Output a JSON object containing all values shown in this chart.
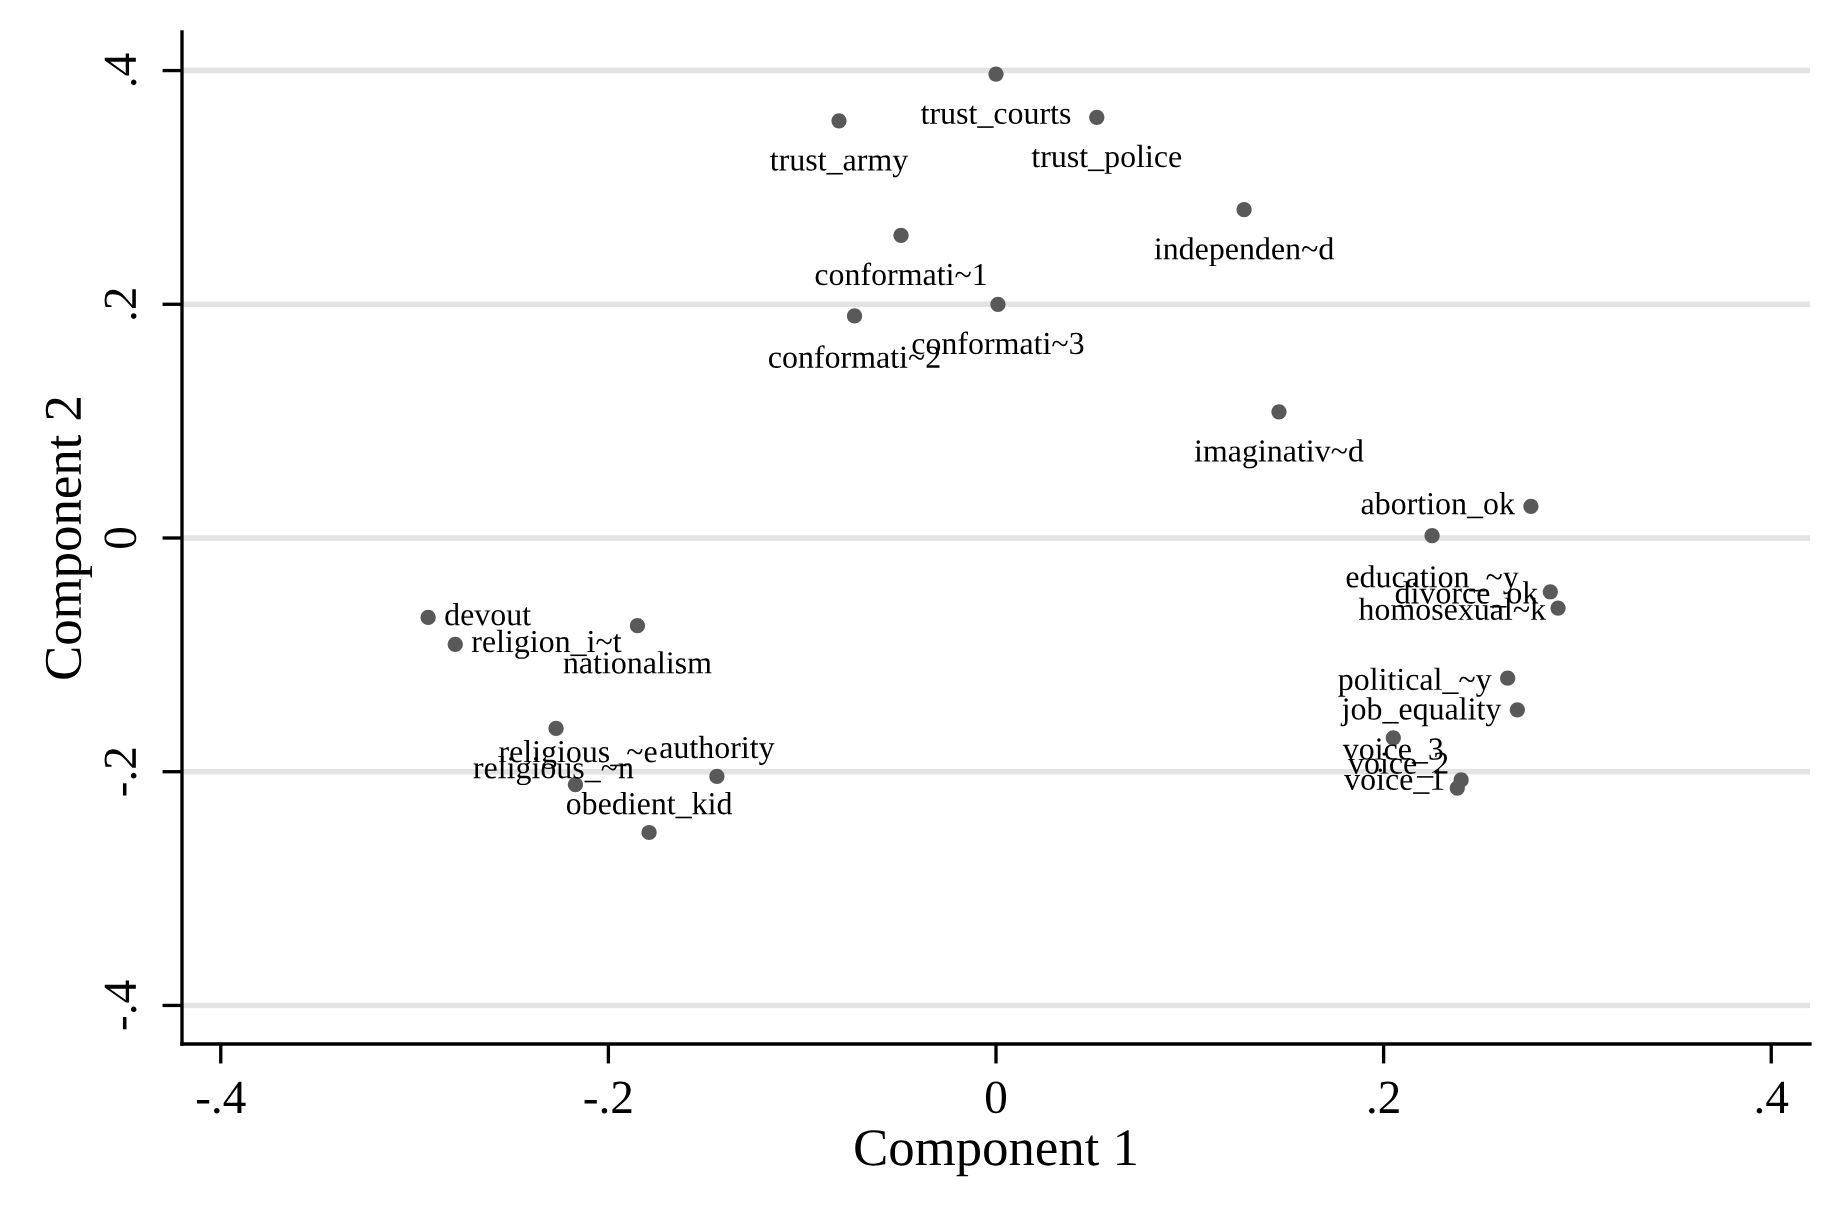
{
  "chart_data": {
    "type": "scatter",
    "xlabel": "Component 1",
    "ylabel": "Component 2",
    "x": [
      0.0,
      -0.081,
      0.052,
      0.128,
      -0.049,
      -0.073,
      0.001,
      0.146,
      0.276,
      0.225,
      0.286,
      0.29,
      0.264,
      0.269,
      0.205,
      0.24,
      0.238,
      -0.293,
      -0.279,
      -0.185,
      -0.227,
      -0.217,
      -0.144,
      -0.179
    ],
    "values": [
      0.397,
      0.357,
      0.36,
      0.281,
      0.259,
      0.19,
      0.2,
      0.108,
      0.027,
      0.002,
      -0.046,
      -0.06,
      -0.12,
      -0.147,
      -0.171,
      -0.207,
      -0.214,
      -0.068,
      -0.091,
      -0.075,
      -0.163,
      -0.211,
      -0.204,
      -0.252
    ],
    "color": "#595959",
    "marker": "circle",
    "annotations": [
      {
        "text": "trust_courts",
        "x": 0.0,
        "y": 0.397
      },
      {
        "text": "trust_army",
        "x": -0.081,
        "y": 0.357
      },
      {
        "text": "trust_police",
        "x": 0.052,
        "y": 0.36
      },
      {
        "text": "independen~d",
        "x": 0.128,
        "y": 0.281
      },
      {
        "text": "conformati~1",
        "x": -0.049,
        "y": 0.259
      },
      {
        "text": "conformati~2",
        "x": -0.073,
        "y": 0.19
      },
      {
        "text": "conformati~3",
        "x": 0.001,
        "y": 0.2
      },
      {
        "text": "imaginativ~d",
        "x": 0.146,
        "y": 0.108
      },
      {
        "text": "abortion_ok",
        "x": 0.276,
        "y": 0.027
      },
      {
        "text": "education_~y",
        "x": 0.225,
        "y": 0.002
      },
      {
        "text": "divorce_ok",
        "x": 0.286,
        "y": -0.046
      },
      {
        "text": "homosexual~k",
        "x": 0.29,
        "y": -0.06
      },
      {
        "text": "political_~y",
        "x": 0.264,
        "y": -0.12
      },
      {
        "text": "job_equality",
        "x": 0.269,
        "y": -0.147
      },
      {
        "text": "voice_3",
        "x": 0.205,
        "y": -0.171
      },
      {
        "text": "voice_2",
        "x": 0.24,
        "y": -0.207
      },
      {
        "text": "voice_1",
        "x": 0.238,
        "y": -0.214
      },
      {
        "text": "devout",
        "x": -0.293,
        "y": -0.068
      },
      {
        "text": "religion_i~t",
        "x": -0.279,
        "y": -0.091
      },
      {
        "text": "nationalism",
        "x": -0.185,
        "y": -0.075
      },
      {
        "text": "religious_~e",
        "x": -0.227,
        "y": -0.163
      },
      {
        "text": "religious_~n",
        "x": -0.217,
        "y": -0.211
      },
      {
        "text": "authority",
        "x": -0.144,
        "y": -0.204
      },
      {
        "text": "obedient_kid",
        "x": -0.179,
        "y": -0.252
      }
    ],
    "xlim": [
      -0.42,
      0.42
    ],
    "ylim": [
      -0.433,
      0.433
    ],
    "xticks": [
      {
        "value": -0.4,
        "label": "-.4"
      },
      {
        "value": -0.2,
        "label": "-.2"
      },
      0,
      {
        "value": 0.2,
        "label": ".2"
      },
      {
        "value": 0.4,
        "label": ".4"
      }
    ],
    "yticks": [
      {
        "value": -0.4,
        "label": "-.4"
      },
      {
        "value": -0.2,
        "label": "-.2"
      },
      0,
      {
        "value": 0.2,
        "label": ".2"
      },
      {
        "value": 0.4,
        "label": ".4"
      }
    ],
    "grid": "y"
  }
}
